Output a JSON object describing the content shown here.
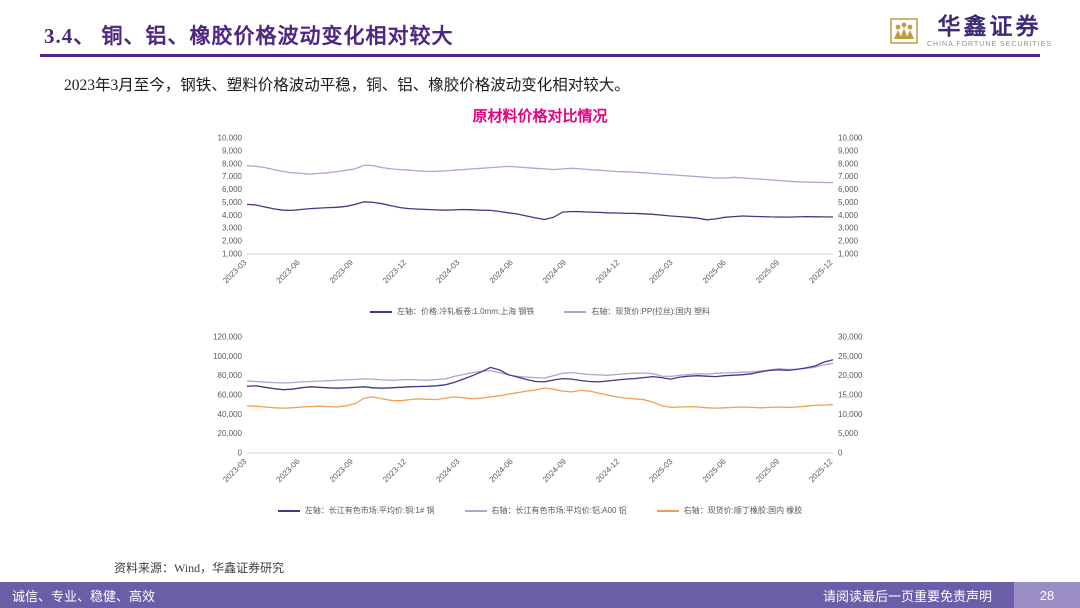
{
  "colors": {
    "title_purple": "#4F2683",
    "chart_title_magenta": "#E6007E",
    "footer_purple": "#6C5DA8",
    "footer_page_bg": "#9A8EC4",
    "logo_gold": "#BE9B3F",
    "logo_purple": "#3D2B75",
    "axis_text_gray": "#595959"
  },
  "header": {
    "title": "3.4、 铜、铝、橡胶价格波动变化相对较大",
    "logo_cn": "华鑫证券",
    "logo_en": "CHINA FORTUNE SECURITIES"
  },
  "intro": "2023年3月至今，钢铁、塑料价格波动平稳，铜、铝、橡胶价格波动变化相对较大。",
  "chart_title": "原材料价格对比情况",
  "source": "资料来源：Wind，华鑫证券研究",
  "footer": {
    "left": "诚信、专业、稳健、高效",
    "right": "请阅读最后一页重要免责声明",
    "page": "28"
  },
  "chart_data": [
    {
      "type": "line",
      "grid": false,
      "legend_position": "bottom",
      "x_labels": [
        "2023-03",
        "2023-06",
        "2023-09",
        "2023-12",
        "2024-03",
        "2024-06",
        "2024-09",
        "2024-12",
        "2025-03",
        "2025-06",
        "2025-09",
        "2025-12"
      ],
      "left_ylim": [
        1000,
        10000
      ],
      "right_ylim": [
        1000,
        10000
      ],
      "left_ticks": [
        10000,
        9000,
        8000,
        7000,
        6000,
        5000,
        4000,
        3000,
        2000,
        1000
      ],
      "right_ticks": [
        10000,
        9000,
        8000,
        7000,
        6000,
        5000,
        4000,
        3000,
        2000,
        1000
      ],
      "series": [
        {
          "name": "左轴：价格:冷轧板卷:1.0mm:上海 钢铁",
          "axis": "left",
          "color": "#3E3A87",
          "values": [
            4850,
            4800,
            4650,
            4500,
            4400,
            4380,
            4450,
            4520,
            4560,
            4600,
            4620,
            4700,
            4850,
            5050,
            5000,
            4900,
            4750,
            4600,
            4520,
            4480,
            4450,
            4420,
            4400,
            4420,
            4450,
            4430,
            4400,
            4380,
            4300,
            4200,
            4100,
            3950,
            3800,
            3680,
            3850,
            4250,
            4300,
            4280,
            4250,
            4230,
            4200,
            4180,
            4150,
            4150,
            4120,
            4080,
            4020,
            3950,
            3900,
            3850,
            3780,
            3650,
            3720,
            3850,
            3900,
            3950,
            3920,
            3900,
            3880,
            3870,
            3860,
            3880,
            3900,
            3890,
            3880,
            3870
          ]
        },
        {
          "name": "右轴：现货价:PP(拉丝):国内 塑料",
          "axis": "right",
          "color": "#ABA6D5",
          "values": [
            7850,
            7800,
            7700,
            7550,
            7400,
            7300,
            7250,
            7200,
            7250,
            7300,
            7400,
            7500,
            7600,
            7900,
            7850,
            7700,
            7600,
            7550,
            7500,
            7450,
            7400,
            7420,
            7450,
            7500,
            7550,
            7600,
            7650,
            7700,
            7750,
            7800,
            7750,
            7700,
            7650,
            7600,
            7550,
            7600,
            7650,
            7600,
            7550,
            7500,
            7450,
            7400,
            7380,
            7350,
            7300,
            7250,
            7200,
            7150,
            7100,
            7050,
            7000,
            6950,
            6900,
            6900,
            6950,
            6900,
            6850,
            6800,
            6750,
            6700,
            6650,
            6600,
            6580,
            6560,
            6550,
            6540
          ]
        }
      ]
    },
    {
      "type": "line",
      "grid": false,
      "legend_position": "bottom",
      "x_labels": [
        "2023-03",
        "2023-06",
        "2023-09",
        "2023-12",
        "2024-03",
        "2024-06",
        "2024-09",
        "2024-12",
        "2025-03",
        "2025-06",
        "2025-09",
        "2025-12"
      ],
      "left_ylim": [
        0,
        120000
      ],
      "right_ylim": [
        0,
        30000
      ],
      "left_ticks": [
        120000,
        100000,
        80000,
        60000,
        40000,
        20000,
        0
      ],
      "right_ticks": [
        30000,
        25000,
        20000,
        15000,
        10000,
        5000,
        0
      ],
      "series": [
        {
          "name": "左轴：长江有色市场:平均价:铜:1# 铜",
          "axis": "left",
          "color": "#3E3A87",
          "values": [
            69000,
            69500,
            68000,
            66500,
            65500,
            66000,
            67500,
            68500,
            68000,
            67500,
            67000,
            67500,
            68000,
            68500,
            67500,
            67000,
            67500,
            68000,
            68500,
            68800,
            69000,
            69500,
            70500,
            73000,
            76500,
            80000,
            84000,
            88500,
            86000,
            81000,
            78500,
            76000,
            74000,
            73500,
            75500,
            77000,
            76500,
            75000,
            74000,
            73500,
            74500,
            75500,
            76500,
            77000,
            78000,
            79000,
            78000,
            76500,
            78500,
            79500,
            80000,
            79500,
            79000,
            80000,
            80500,
            81000,
            82000,
            84000,
            85500,
            86000,
            85500,
            86500,
            88000,
            90000,
            94000,
            96500
          ]
        },
        {
          "name": "右轴：长江有色市场:平均价:铝:A00 铝",
          "axis": "right",
          "color": "#ABA6D5",
          "values": [
            18600,
            18500,
            18300,
            18200,
            18100,
            18200,
            18400,
            18500,
            18600,
            18700,
            18800,
            18900,
            19000,
            19200,
            19100,
            18900,
            18800,
            18900,
            19000,
            18900,
            18800,
            19000,
            19200,
            19800,
            20300,
            20800,
            21100,
            21300,
            20800,
            20200,
            19800,
            19600,
            19500,
            19400,
            20000,
            20600,
            20800,
            20500,
            20300,
            20200,
            20100,
            20300,
            20500,
            20600,
            20700,
            20500,
            19900,
            19800,
            20100,
            20300,
            20500,
            20400,
            20600,
            20700,
            20800,
            20900,
            21000,
            21200,
            21500,
            21800,
            21600,
            21700,
            21900,
            22200,
            22800,
            23200
          ]
        },
        {
          "name": "右轴：现货价:顺丁橡胶:国内 橡胶",
          "axis": "right",
          "color": "#F2A04E",
          "values": [
            12200,
            12100,
            11900,
            11700,
            11600,
            11700,
            11900,
            12000,
            12100,
            12000,
            11900,
            12200,
            12800,
            14200,
            14500,
            14000,
            13600,
            13500,
            13800,
            14000,
            13900,
            13800,
            14200,
            14500,
            14300,
            14000,
            14200,
            14500,
            14800,
            15200,
            15600,
            16000,
            16300,
            16800,
            16500,
            16000,
            15800,
            16200,
            16000,
            15500,
            15000,
            14500,
            14200,
            14000,
            13800,
            13200,
            12200,
            11800,
            11900,
            12000,
            11900,
            11700,
            11600,
            11700,
            11800,
            11900,
            11800,
            11700,
            11800,
            11900,
            11800,
            11900,
            12100,
            12300,
            12400,
            12500
          ]
        }
      ]
    }
  ]
}
